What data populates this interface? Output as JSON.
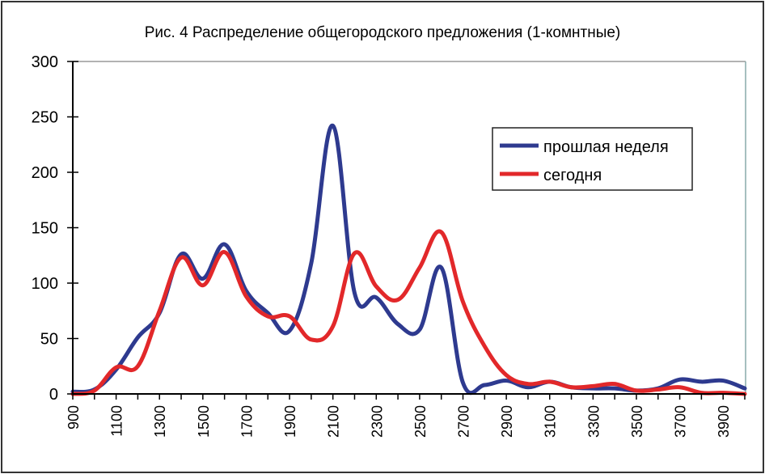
{
  "chart_data": {
    "type": "line",
    "title": "Рис. 4  Распределение общегородского предложения (1-комнтные)",
    "xlabel": "",
    "ylabel": "",
    "x": [
      900,
      1000,
      1100,
      1200,
      1300,
      1400,
      1500,
      1600,
      1700,
      1800,
      1900,
      2000,
      2100,
      2200,
      2300,
      2400,
      2500,
      2600,
      2700,
      2800,
      2900,
      3000,
      3100,
      3200,
      3300,
      3400,
      3500,
      3600,
      3700,
      3800,
      3900,
      4000
    ],
    "x_tick_labels": [
      "900",
      "1100",
      "1300",
      "1500",
      "1700",
      "1900",
      "2100",
      "2300",
      "2500",
      "2700",
      "2900",
      "3100",
      "3300",
      "3500",
      "3700",
      "3900"
    ],
    "y_tick_labels": [
      "0",
      "50",
      "100",
      "150",
      "200",
      "250",
      "300"
    ],
    "ylim": [
      0,
      300
    ],
    "grid": false,
    "legend_position": "top-right",
    "series": [
      {
        "name": "прошлая неделя",
        "color": "#2e3a8f",
        "values": [
          2,
          4,
          22,
          51,
          73,
          126,
          104,
          135,
          93,
          73,
          57,
          118,
          242,
          91,
          87,
          63,
          58,
          114,
          10,
          8,
          12,
          6,
          11,
          6,
          5,
          5,
          3,
          5,
          13,
          11,
          12,
          5
        ]
      },
      {
        "name": "сегодня",
        "color": "#e2282a",
        "values": [
          0,
          3,
          24,
          25,
          75,
          123,
          98,
          128,
          88,
          70,
          70,
          49,
          61,
          127,
          97,
          85,
          114,
          146,
          83,
          43,
          17,
          9,
          11,
          6,
          7,
          9,
          3,
          4,
          6,
          1,
          1,
          0
        ]
      }
    ]
  }
}
